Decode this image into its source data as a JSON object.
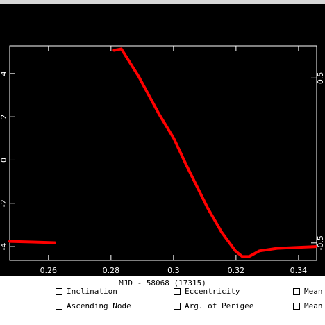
{
  "chart_data": {
    "type": "line",
    "x_label": "MJD - 58068 (17315)",
    "x": [
      0.2476,
      0.255,
      0.262,
      0.27,
      0.281,
      0.2833,
      0.2888,
      0.2954,
      0.3001,
      0.3043,
      0.3109,
      0.3154,
      0.3198,
      0.322,
      0.3242,
      0.3275,
      0.3331,
      0.3397,
      0.3455
    ],
    "series": [
      {
        "color": "#ff0000",
        "values": [
          -3.76,
          -3.79,
          -3.82,
          null,
          5.07,
          5.14,
          3.88,
          2.12,
          1.0,
          -0.29,
          -2.21,
          -3.34,
          -4.2,
          -4.46,
          -4.46,
          -4.2,
          -4.08,
          -4.04,
          -4.0
        ]
      }
    ],
    "xlim": [
      0.2476,
      0.3458
    ],
    "xticks": [
      0.26,
      0.28,
      0.3,
      0.32,
      0.34
    ],
    "ylim": [
      -4.64,
      5.28
    ],
    "yticks": [
      -4,
      -2,
      0,
      2,
      4
    ],
    "y2lim": [
      -0.606,
      0.695
    ],
    "y2ticks": [
      -0.5,
      0.5
    ]
  },
  "controls": {
    "checkboxes": [
      [
        "Inclination",
        "Eccentricity",
        "Mean"
      ],
      [
        "Ascending Node",
        "Arg. of Perigee",
        "Mean"
      ]
    ]
  }
}
